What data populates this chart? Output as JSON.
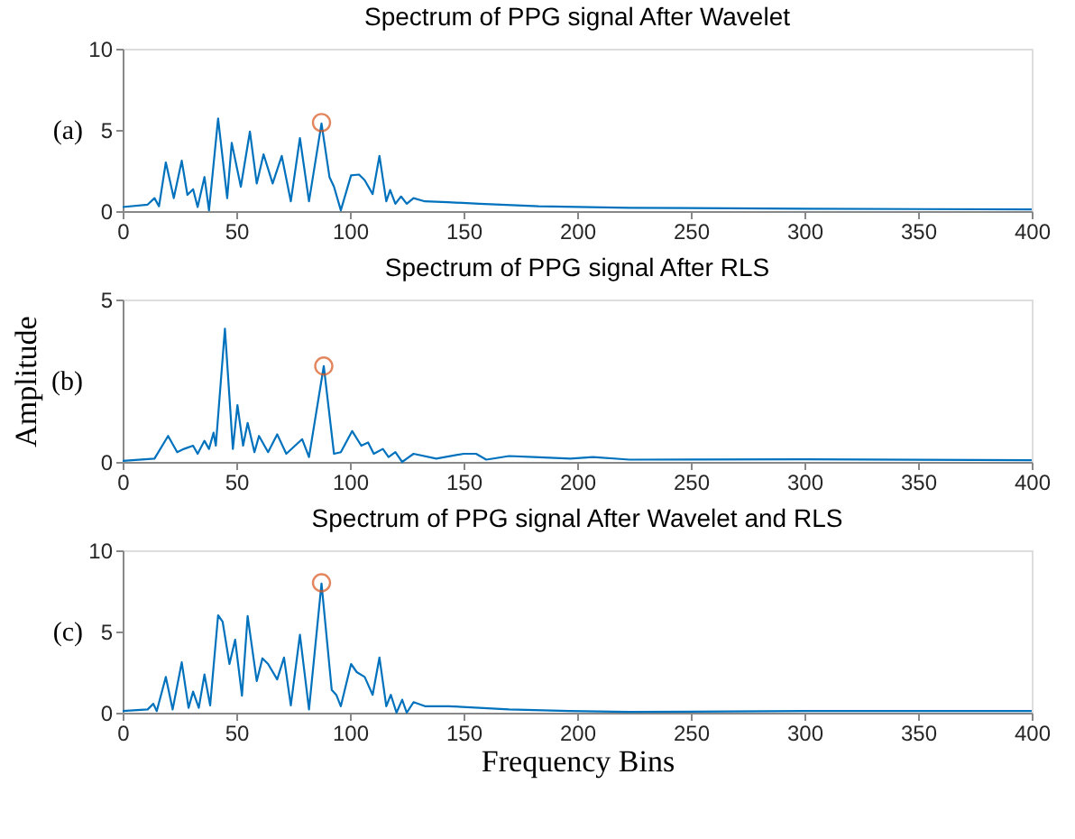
{
  "chart_data": [
    {
      "type": "line",
      "title": "Spectrum of PPG signal After Wavelet",
      "annotations": [
        "(a)"
      ],
      "xlim": [
        0,
        400
      ],
      "xticks": [
        0,
        50,
        100,
        150,
        200,
        250,
        300,
        350,
        400
      ],
      "ylim": [
        0,
        10
      ],
      "yticks": [
        0,
        5,
        10
      ],
      "grid": false,
      "series": [
        {
          "color": "#0072bd",
          "line_style": "solid",
          "x": [
            0,
            11,
            14,
            16,
            19,
            22.5,
            26,
            28.5,
            31,
            33,
            36,
            38,
            42,
            46,
            48,
            52,
            56,
            59,
            62,
            66,
            70,
            74,
            78,
            82,
            87.5,
            91,
            93,
            96,
            100.5,
            104,
            106.5,
            110,
            113,
            116,
            117.7,
            120,
            122.5,
            125,
            128,
            133,
            143,
            157,
            183,
            223,
            300,
            400
          ],
          "values": [
            0.25,
            0.4,
            0.8,
            0.3,
            3.0,
            0.8,
            3.1,
            1.0,
            1.35,
            0.25,
            2.1,
            0.05,
            5.7,
            0.8,
            4.2,
            1.5,
            4.9,
            1.7,
            3.5,
            1.7,
            3.4,
            0.6,
            4.5,
            0.6,
            5.4,
            2.1,
            1.5,
            0.05,
            2.2,
            2.25,
            1.9,
            1.05,
            3.4,
            0.6,
            1.3,
            0.45,
            0.9,
            0.45,
            0.8,
            0.6,
            0.55,
            0.45,
            0.3,
            0.2,
            0.15,
            0.1
          ]
        },
        {
          "type": "scatter",
          "color": "#d95319",
          "marker": "circle",
          "x": [
            87.5
          ],
          "values": [
            5.45
          ]
        }
      ]
    },
    {
      "type": "line",
      "title": "Spectrum of PPG signal After RLS",
      "ylabel": "Amplitude",
      "annotations": [
        "(b)"
      ],
      "xlim": [
        0,
        400
      ],
      "xticks": [
        0,
        50,
        100,
        150,
        200,
        250,
        300,
        350,
        400
      ],
      "ylim": [
        0,
        5
      ],
      "yticks": [
        0,
        5
      ],
      "grid": false,
      "series": [
        {
          "color": "#0072bd",
          "line_style": "solid",
          "x": [
            0,
            14,
            20,
            24,
            27,
            31,
            33,
            36,
            38,
            40,
            41,
            45,
            48.5,
            50.5,
            53,
            55,
            58,
            60,
            64,
            68,
            72,
            79,
            82,
            88.5,
            93,
            96,
            101,
            105,
            108,
            110.5,
            114.5,
            117,
            120,
            123,
            128,
            138,
            150,
            155.5,
            160,
            170,
            181,
            197,
            207,
            223,
            300,
            400
          ],
          "values": [
            0.03,
            0.1,
            0.8,
            0.3,
            0.4,
            0.5,
            0.25,
            0.65,
            0.4,
            0.9,
            0.5,
            4.1,
            0.4,
            1.75,
            0.5,
            1.2,
            0.3,
            0.8,
            0.3,
            0.85,
            0.25,
            0.7,
            0.15,
            2.95,
            0.25,
            0.3,
            0.95,
            0.5,
            0.6,
            0.25,
            0.4,
            0.15,
            0.3,
            0.0,
            0.25,
            0.1,
            0.25,
            0.25,
            0.07,
            0.18,
            0.15,
            0.1,
            0.15,
            0.07,
            0.08,
            0.05
          ]
        },
        {
          "type": "scatter",
          "color": "#d95319",
          "marker": "circle",
          "x": [
            88.5
          ],
          "values": [
            2.95
          ]
        }
      ]
    },
    {
      "type": "line",
      "title": "Spectrum of PPG signal After Wavelet and RLS",
      "xlabel": "Frequency Bins",
      "annotations": [
        "(c)"
      ],
      "xlim": [
        0,
        400
      ],
      "xticks": [
        0,
        50,
        100,
        150,
        200,
        250,
        300,
        350,
        400
      ],
      "ylim": [
        0,
        10
      ],
      "yticks": [
        0,
        5,
        10
      ],
      "grid": false,
      "series": [
        {
          "color": "#0072bd",
          "line_style": "solid",
          "x": [
            0,
            11,
            13.5,
            15,
            19,
            22,
            26,
            29,
            31,
            33.5,
            36,
            38.5,
            42,
            44,
            47,
            49.5,
            52.5,
            55,
            59,
            61.5,
            64,
            68,
            71,
            74,
            78,
            82,
            87.5,
            92,
            94,
            96,
            100.5,
            103,
            106.5,
            110,
            113,
            116,
            118,
            120.5,
            123,
            125,
            128,
            133,
            143.5,
            157,
            170,
            196.5,
            223,
            300,
            400
          ],
          "values": [
            0.1,
            0.2,
            0.55,
            0.1,
            2.2,
            0.2,
            3.1,
            0.3,
            1.3,
            0.3,
            2.35,
            0.45,
            6.0,
            5.6,
            3.0,
            4.5,
            1.05,
            5.95,
            1.95,
            3.35,
            3.0,
            2.05,
            3.4,
            0.45,
            4.8,
            0.2,
            7.95,
            1.4,
            1.1,
            0.4,
            3.0,
            2.5,
            2.2,
            1.1,
            3.4,
            0.4,
            1.1,
            0.0,
            0.8,
            0.0,
            0.65,
            0.4,
            0.4,
            0.3,
            0.2,
            0.1,
            0.05,
            0.1,
            0.1
          ]
        },
        {
          "type": "scatter",
          "color": "#d95319",
          "marker": "circle",
          "x": [
            87.5
          ],
          "values": [
            8.0
          ]
        }
      ]
    }
  ]
}
